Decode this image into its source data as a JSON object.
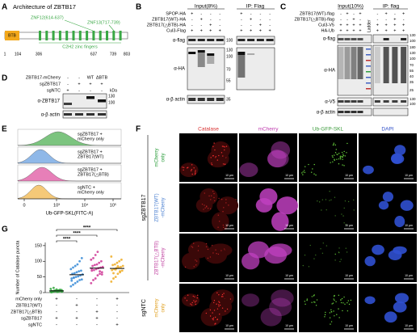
{
  "panels": {
    "A": {
      "letter": "A",
      "title": "Architecture of ZBTB17",
      "btb": "BTB",
      "znf12": "ZNF12(614-637)",
      "znf13": "ZNF13(717-739)",
      "zinc_fingers": "C2H2 zinc fingers",
      "positions": [
        "1",
        "104",
        "306",
        "637",
        "739",
        "803"
      ]
    },
    "B": {
      "letter": "B",
      "input": "Input(8%)",
      "ip": "IP: Flag",
      "rows": [
        {
          "label": "SPOP-HA",
          "signs": [
            "+",
            "-",
            "-",
            "-",
            "+",
            "-",
            "-",
            "-"
          ]
        },
        {
          "label": "ZBTB17(WT)-HA",
          "signs": [
            "-",
            "+",
            "-",
            "-",
            "-",
            "+",
            "-",
            "-"
          ]
        },
        {
          "label": "ZBTB17(△BTB)-HA",
          "signs": [
            "-",
            "-",
            "+",
            "-",
            "-",
            "-",
            "+",
            "-"
          ]
        },
        {
          "label": "Cul3-Flag",
          "signs": [
            "+",
            "+",
            "+",
            "+",
            "+",
            "+",
            "+",
            "+"
          ]
        }
      ],
      "blots": [
        "α-flag",
        "α-HA",
        "α-β actin"
      ],
      "kda": [
        "100",
        "130",
        "100",
        "70",
        "55",
        "35"
      ]
    },
    "C": {
      "letter": "C",
      "input": "Input(10%)",
      "ip": "IP: flag",
      "ladder": "Ladder",
      "rows": [
        {
          "label": "ZBTB17(WT)-flag",
          "signs": [
            "-",
            "+",
            "-",
            "+",
            "-",
            "+",
            "-",
            "+"
          ]
        },
        {
          "label": "ZBTB17(△BTB)-flag",
          "signs": [
            "-",
            "-",
            "+",
            "-",
            "-",
            "-",
            "+",
            "-"
          ]
        },
        {
          "label": "Cul3-V5",
          "signs": [
            "+",
            "+",
            "+",
            "+",
            "+",
            "+",
            "+",
            "+"
          ]
        },
        {
          "label": "HA-Ub",
          "signs": [
            "+",
            "+",
            "+",
            "+",
            "+",
            "+",
            "+",
            "+"
          ]
        }
      ],
      "blots": [
        "α-flag",
        "α-HA",
        "α-V5",
        "α-β actin"
      ],
      "kda": [
        "130",
        "100",
        "180",
        "130",
        "100",
        "70",
        "55",
        "40",
        "35",
        "25",
        "130",
        "100"
      ]
    },
    "D": {
      "letter": "D",
      "kda_unit": "kDa",
      "rows": [
        {
          "label": "ZBTB17-mCherry",
          "signs": [
            "-",
            "-",
            "WT",
            "ΔBTB"
          ]
        },
        {
          "label": "sgZBTB17",
          "signs": [
            "-",
            "+",
            "+",
            "+"
          ]
        },
        {
          "label": "sgNTC",
          "signs": [
            "+",
            "-",
            "-",
            "-"
          ]
        }
      ],
      "blots": [
        "α-ZBTB17",
        "α-β actin"
      ],
      "kda": [
        "130",
        "100"
      ]
    },
    "E": {
      "letter": "E",
      "x_label": "Ub-GFP-SKL(FITC-A)",
      "xtick_labels": [
        "0",
        "10³",
        "10⁴",
        "10⁵"
      ],
      "histograms": [
        {
          "lines": [
            "sgZBTB17 +",
            "mCherry only"
          ],
          "color": "#7cc47f"
        },
        {
          "lines": [
            "sgZBTB17 +",
            "ZBTB17(WT)"
          ],
          "color": "#8fb8e8"
        },
        {
          "lines": [
            "sgZBTB17 +",
            "ZBTB17(△BTB)"
          ],
          "color": "#e77fb8"
        },
        {
          "lines": [
            "sgNTC +",
            "mCherry only"
          ],
          "color": "#f5c978"
        }
      ]
    },
    "F": {
      "letter": "F",
      "scale_bar": "10 μm",
      "columns": [
        {
          "label": "Catalase",
          "color": "#d83030"
        },
        {
          "label": "mCherry",
          "color": "#c040b0"
        },
        {
          "label": "Ub-GFP-SKL",
          "color": "#3a9a3a"
        },
        {
          "label": "DAPI",
          "color": "#3050c8"
        }
      ],
      "group": "sgZBTB17",
      "group2": "sgNTC",
      "rows": [
        {
          "lines": [
            "mCherry",
            "only"
          ],
          "color": "#2e9e3e"
        },
        {
          "lines": [
            "ZBTB17(WT)",
            "-mCherry"
          ],
          "color": "#4a7fd0"
        },
        {
          "lines": [
            "ZBTB17(△BTB)",
            "-mCherry"
          ],
          "color": "#c040a0"
        },
        {
          "lines": [
            "mCherry",
            "only"
          ],
          "color": "#e0a020"
        }
      ]
    }
  },
  "chart_data": {
    "type": "strip",
    "letter": "G",
    "y_label": "Number of Catalase puncta",
    "ylim": [
      0,
      160
    ],
    "yticks": [
      0,
      50,
      100,
      150
    ],
    "series": [
      {
        "color": "#3aa845",
        "mean": 5.5,
        "values": [
          2,
          3,
          5,
          4,
          6,
          8,
          1,
          3,
          5,
          7,
          9,
          4,
          2,
          6,
          10,
          3,
          5,
          12,
          4,
          6,
          2,
          8,
          3,
          5,
          15
        ]
      },
      {
        "color": "#3f8fd8",
        "mean": 57,
        "values": [
          20,
          25,
          30,
          35,
          40,
          42,
          45,
          48,
          50,
          52,
          55,
          58,
          60,
          62,
          65,
          68,
          70,
          75,
          80,
          85,
          90,
          100,
          110,
          38,
          47
        ]
      },
      {
        "color": "#d0409a",
        "mean": 78,
        "values": [
          30,
          40,
          45,
          55,
          60,
          65,
          70,
          72,
          75,
          78,
          80,
          82,
          85,
          88,
          90,
          95,
          100,
          105,
          110,
          120,
          130,
          68,
          58,
          76
        ]
      },
      {
        "color": "#f0b030",
        "mean": 77,
        "values": [
          35,
          45,
          50,
          60,
          65,
          70,
          72,
          75,
          78,
          80,
          82,
          85,
          88,
          90,
          95,
          100,
          105,
          115,
          62,
          74,
          84,
          68
        ]
      }
    ],
    "annotations": [
      "****",
      "****",
      "****"
    ],
    "conditions": [
      {
        "label": "mCherry only",
        "signs": [
          "+",
          "-",
          "-",
          "+"
        ]
      },
      {
        "label": "ZBTB17(WT)",
        "signs": [
          "-",
          "+",
          "-",
          "-"
        ]
      },
      {
        "label": "ZBTB17(△BTB)",
        "signs": [
          "-",
          "-",
          "+",
          "-"
        ]
      },
      {
        "label": "sgZBTB17",
        "signs": [
          "+",
          "+",
          "+",
          "-"
        ]
      },
      {
        "label": "sgNTC",
        "signs": [
          "-",
          "-",
          "-",
          "+"
        ]
      }
    ]
  }
}
